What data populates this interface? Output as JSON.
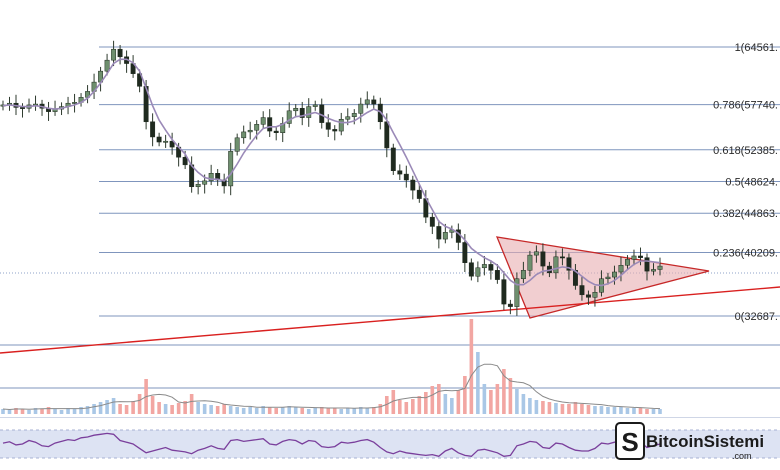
{
  "chart_data": {
    "type": "candlestick",
    "fib_levels": [
      {
        "label": "1(64561.",
        "ratio": 1,
        "value": 64561
      },
      {
        "label": "0.786(57740.",
        "ratio": 0.786,
        "value": 57740
      },
      {
        "label": "0.618(52385.",
        "ratio": 0.618,
        "value": 52385
      },
      {
        "label": "0.5(48624.",
        "ratio": 0.5,
        "value": 48624
      },
      {
        "label": "0.382(44863.",
        "ratio": 0.382,
        "value": 44863
      },
      {
        "label": "0.236(40209.",
        "ratio": 0.236,
        "value": 40209
      },
      {
        "label": "0(32687.",
        "ratio": 0,
        "value": 32687
      }
    ],
    "ylim": [
      29800,
      66200
    ],
    "candles_close": [
      57700,
      57900,
      57400,
      57300,
      57700,
      57800,
      57300,
      56900,
      57200,
      57500,
      57900,
      58000,
      58600,
      59300,
      60400,
      61700,
      63000,
      64300,
      63400,
      62600,
      61400,
      59900,
      55700,
      53900,
      53300,
      53400,
      52700,
      51500,
      50600,
      48000,
      48300,
      48700,
      49600,
      48800,
      48100,
      52200,
      53800,
      54500,
      54700,
      55400,
      56200,
      54600,
      54400,
      55500,
      57000,
      57300,
      56200,
      57500,
      57700,
      55600,
      54800,
      54600,
      56000,
      56300,
      56700,
      57800,
      58300,
      57800,
      55700,
      52600,
      49900,
      49500,
      48800,
      47600,
      46600,
      44400,
      43300,
      41800,
      42600,
      42900,
      41400,
      39000,
      37400,
      38400,
      38800,
      38100,
      37000,
      34100,
      33800,
      37100,
      38100,
      39900,
      40300,
      38600,
      37800,
      39700,
      39600,
      38100,
      36300,
      35200,
      34900,
      35500,
      37100,
      37300,
      37900,
      38700,
      39400,
      39800,
      39600,
      38000,
      38200,
      38600
    ],
    "ma_close": [
      57600,
      57700,
      57600,
      57500,
      57500,
      57600,
      57500,
      57300,
      57200,
      57300,
      57500,
      57700,
      58000,
      58500,
      59300,
      60300,
      61400,
      62600,
      63100,
      63100,
      62700,
      61700,
      59700,
      57600,
      55900,
      54700,
      53600,
      52700,
      51900,
      50500,
      49700,
      49100,
      48900,
      48900,
      48700,
      49500,
      50700,
      52000,
      53100,
      54100,
      54900,
      55100,
      55100,
      55400,
      55900,
      56300,
      56400,
      56600,
      56800,
      56500,
      56100,
      55800,
      55600,
      55600,
      55800,
      56300,
      56800,
      57200,
      56900,
      55900,
      54400,
      53000,
      51500,
      49900,
      48300,
      46700,
      45300,
      43900,
      43300,
      43000,
      42500,
      41700,
      40700,
      40100,
      39600,
      39200,
      38700,
      37800,
      36900,
      36400,
      36400,
      36900,
      37600,
      38000,
      38100,
      38300,
      38500,
      38400,
      38000,
      37400,
      36800,
      36400,
      36300,
      36500,
      36900,
      37500,
      38200,
      38800,
      39200,
      39200,
      39100,
      39000
    ],
    "volume_relative": [
      0.05,
      0.04,
      0.06,
      0.05,
      0.04,
      0.06,
      0.05,
      0.07,
      0.05,
      0.04,
      0.06,
      0.05,
      0.07,
      0.08,
      0.1,
      0.12,
      0.14,
      0.16,
      0.1,
      0.09,
      0.13,
      0.2,
      0.35,
      0.18,
      0.12,
      0.1,
      0.09,
      0.11,
      0.13,
      0.2,
      0.12,
      0.1,
      0.09,
      0.08,
      0.1,
      0.08,
      0.07,
      0.06,
      0.07,
      0.06,
      0.08,
      0.07,
      0.06,
      0.07,
      0.08,
      0.07,
      0.06,
      0.05,
      0.06,
      0.07,
      0.06,
      0.06,
      0.05,
      0.06,
      0.06,
      0.07,
      0.06,
      0.07,
      0.1,
      0.18,
      0.24,
      0.14,
      0.12,
      0.15,
      0.18,
      0.22,
      0.28,
      0.3,
      0.2,
      0.16,
      0.24,
      0.38,
      0.95,
      0.62,
      0.3,
      0.24,
      0.3,
      0.45,
      0.36,
      0.25,
      0.2,
      0.16,
      0.14,
      0.13,
      0.12,
      0.11,
      0.1,
      0.1,
      0.12,
      0.1,
      0.09,
      0.08,
      0.08,
      0.07,
      0.07,
      0.07,
      0.06,
      0.06,
      0.06,
      0.05,
      0.05,
      0.05
    ],
    "rsi_values": [
      52,
      55,
      48,
      50,
      58,
      54,
      46,
      44,
      52,
      56,
      60,
      58,
      64,
      66,
      70,
      72,
      74,
      72,
      58,
      54,
      50,
      40,
      30,
      34,
      38,
      42,
      36,
      34,
      32,
      28,
      36,
      40,
      46,
      40,
      38,
      58,
      60,
      56,
      58,
      60,
      62,
      50,
      48,
      56,
      60,
      58,
      50,
      58,
      56,
      44,
      42,
      44,
      54,
      52,
      54,
      58,
      60,
      54,
      42,
      32,
      28,
      34,
      30,
      28,
      26,
      24,
      26,
      22,
      34,
      40,
      30,
      24,
      22,
      36,
      38,
      34,
      30,
      22,
      24,
      46,
      50,
      56,
      54,
      42,
      40,
      52,
      50,
      42,
      36,
      34,
      34,
      40,
      52,
      50,
      54,
      56,
      58,
      58,
      54,
      42,
      46,
      50
    ],
    "pattern": "triangle"
  },
  "watermark": {
    "text": "BitcoinSistemi",
    "sub": ".com"
  },
  "colors": {
    "fib_line": "#7f95bd",
    "up_candle": "#6e8f6e",
    "down_candle": "#1f2a1f",
    "ma_line": "#9b8ab8",
    "triangle_fill": "#e8aeb0",
    "triangle_stroke": "#c62828",
    "trendline": "#d9201f",
    "rsi_line": "#7a3f9c",
    "rsi_band": "#dde3f3",
    "volume_up": "#a9c7e6",
    "volume_down": "#f2a6a2"
  }
}
